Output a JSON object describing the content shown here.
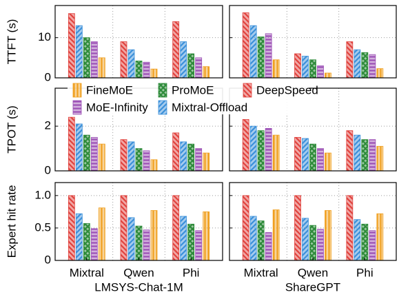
{
  "chart_data": {
    "type": "bar",
    "categories": [
      "Mixtral",
      "Qwen",
      "Phi"
    ],
    "groups": [
      "LMSYS-Chat-1M",
      "ShareGPT"
    ],
    "series": [
      {
        "name": "DeepSpeed",
        "color": "#e0413c",
        "hatch": "backslash"
      },
      {
        "name": "Mixtral-Offload",
        "color": "#3a8fd9",
        "hatch": "slash"
      },
      {
        "name": "ProMoE",
        "color": "#2e8b3a",
        "hatch": "cross"
      },
      {
        "name": "MoE-Infinity",
        "color": "#9b4fb5",
        "hatch": "horizontal"
      },
      {
        "name": "FineMoE",
        "color": "#f0a020",
        "hatch": "vertical"
      }
    ],
    "grid": true,
    "panels": [
      {
        "ylabel": "TTFT (s)",
        "ylim": [
          0,
          18
        ],
        "yticks": [
          0,
          10
        ],
        "values": [
          [
            [
              16,
              9,
              14
            ],
            [
              13,
              7,
              9
            ],
            [
              10,
              4.2,
              6
            ],
            [
              9,
              3.9,
              5
            ],
            [
              5,
              2.2,
              2.8
            ]
          ],
          [
            [
              16.2,
              6,
              9
            ],
            [
              13,
              5.4,
              7
            ],
            [
              10.2,
              4.5,
              6.3
            ],
            [
              11,
              3,
              5.8
            ],
            [
              4.5,
              1.2,
              2.3
            ]
          ]
        ]
      },
      {
        "ylabel": "TPOT (s)",
        "ylim": [
          0,
          3.7
        ],
        "yticks": [
          0,
          2
        ],
        "values": [
          [
            [
              2.4,
              1.4,
              1.7
            ],
            [
              2.1,
              1.3,
              1.3
            ],
            [
              1.6,
              1.0,
              1.2
            ],
            [
              1.5,
              0.9,
              1.0
            ],
            [
              1.2,
              0.5,
              0.8
            ]
          ],
          [
            [
              2.3,
              1.5,
              1.8
            ],
            [
              2.0,
              1.45,
              1.6
            ],
            [
              1.8,
              1.2,
              1.4
            ],
            [
              1.9,
              1.0,
              1.4
            ],
            [
              1.6,
              0.8,
              1.1
            ]
          ]
        ]
      },
      {
        "ylabel": "Expert hit rate",
        "ylim": [
          0,
          1.2
        ],
        "yticks": [
          0,
          0.5,
          {
            "value": 1.0,
            "label": "1.0"
          }
        ],
        "values": [
          [
            [
              1.0,
              1.0,
              1.0
            ],
            [
              0.72,
              0.66,
              0.68
            ],
            [
              0.57,
              0.53,
              0.56
            ],
            [
              0.49,
              0.47,
              0.46
            ],
            [
              0.81,
              0.77,
              0.75
            ]
          ],
          [
            [
              1.0,
              1.0,
              1.0
            ],
            [
              0.68,
              0.65,
              0.63
            ],
            [
              0.61,
              0.54,
              0.56
            ],
            [
              0.43,
              0.48,
              0.46
            ],
            [
              0.78,
              0.77,
              0.72
            ]
          ]
        ]
      }
    ]
  }
}
